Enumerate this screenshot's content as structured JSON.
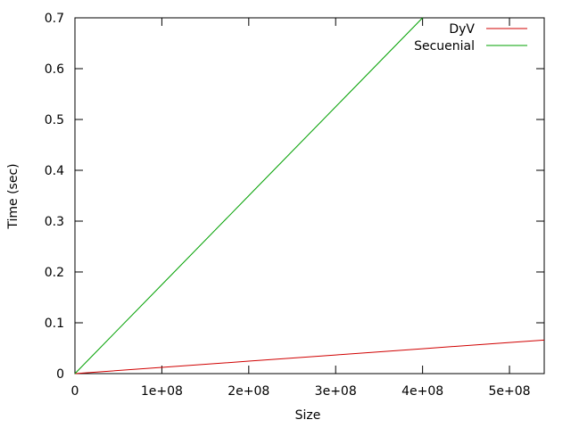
{
  "chart_data": {
    "type": "line",
    "title": "",
    "xlabel": "Size",
    "ylabel": "Time (sec)",
    "xlim": [
      0,
      540000000
    ],
    "ylim": [
      0,
      0.7
    ],
    "grid": false,
    "legend_position": "top-right",
    "x_ticks": [
      {
        "value": 0,
        "label": "0"
      },
      {
        "value": 100000000,
        "label": "1e+08"
      },
      {
        "value": 200000000,
        "label": "2e+08"
      },
      {
        "value": 300000000,
        "label": "3e+08"
      },
      {
        "value": 400000000,
        "label": "4e+08"
      },
      {
        "value": 500000000,
        "label": "5e+08"
      }
    ],
    "y_ticks": [
      {
        "value": 0,
        "label": "0"
      },
      {
        "value": 0.1,
        "label": "0.1"
      },
      {
        "value": 0.2,
        "label": "0.2"
      },
      {
        "value": 0.3,
        "label": "0.3"
      },
      {
        "value": 0.4,
        "label": "0.4"
      },
      {
        "value": 0.5,
        "label": "0.5"
      },
      {
        "value": 0.6,
        "label": "0.6"
      },
      {
        "value": 0.7,
        "label": "0.7"
      }
    ],
    "series": [
      {
        "name": "DyV",
        "color": "#d00000",
        "x": [
          0,
          100000000,
          200000000,
          300000000,
          400000000,
          500000000,
          540000000
        ],
        "y": [
          0,
          0.0122,
          0.0245,
          0.0367,
          0.049,
          0.0612,
          0.066
        ]
      },
      {
        "name": "Secuenial",
        "color": "#00a000",
        "x": [
          0,
          100000000,
          200000000,
          300000000,
          400000000
        ],
        "y": [
          0,
          0.175,
          0.35,
          0.525,
          0.7
        ]
      }
    ]
  }
}
